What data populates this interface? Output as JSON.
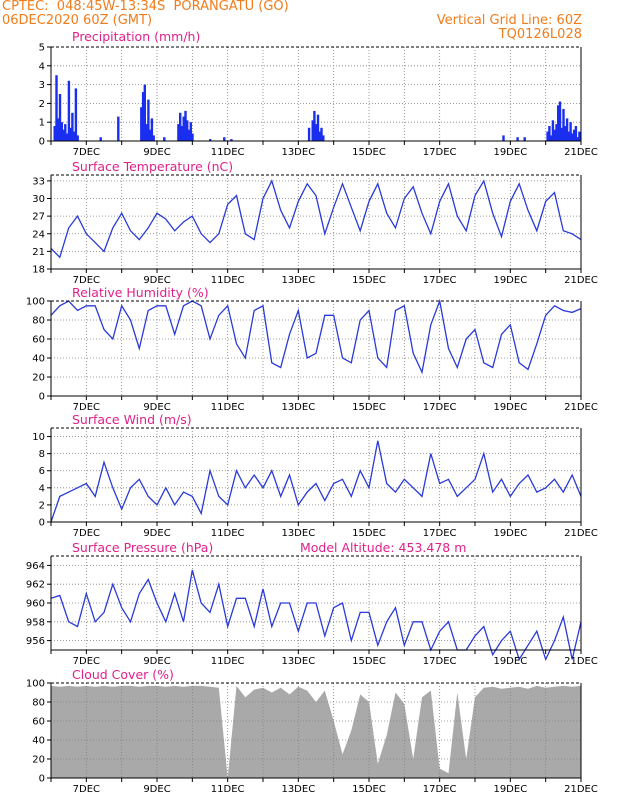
{
  "header": {
    "line1_left": "CPTEC:  048:45W-13:34S  PORANGATU (GO)",
    "line2_left": "06DEC2020 60Z (GMT)",
    "line1_right": "Vertical Grid Line: 60Z",
    "line2_right": "TQ0126L028"
  },
  "colors": {
    "header": "#f07c1c",
    "title": "#e0208a",
    "line": "#2a3ad8",
    "bar": "#1a2ef0",
    "cloud": "#a9a9a9",
    "grid": "#808080"
  },
  "x_axis": {
    "start_day": 6,
    "end_day": 21,
    "tick_labels": [
      "7DEC",
      "9DEC",
      "11DEC",
      "13DEC",
      "15DEC",
      "17DEC",
      "19DEC",
      "21DEC"
    ],
    "tick_days": [
      7,
      9,
      11,
      13,
      15,
      17,
      19,
      21
    ]
  },
  "model_altitude": "Model Altitude: 453.478 m",
  "chart_data": [
    {
      "type": "bar",
      "title": "Precipitation (mm/h)",
      "ylim": [
        0,
        5
      ],
      "yticks": [
        "0",
        "1",
        "2",
        "3",
        "4",
        "5"
      ],
      "x": [
        6.1,
        6.15,
        6.2,
        6.25,
        6.3,
        6.35,
        6.4,
        6.45,
        6.5,
        6.55,
        6.6,
        6.65,
        6.7,
        6.75,
        7.4,
        7.9,
        8.55,
        8.6,
        8.65,
        8.7,
        8.75,
        8.8,
        8.85,
        8.9,
        9.2,
        9.6,
        9.65,
        9.7,
        9.75,
        9.8,
        9.85,
        9.9,
        9.95,
        10.0,
        10.5,
        10.9,
        11.1,
        13.3,
        13.4,
        13.45,
        13.5,
        13.55,
        13.6,
        13.65,
        13.7,
        18.8,
        19.2,
        19.4,
        20.05,
        20.1,
        20.15,
        20.2,
        20.25,
        20.3,
        20.35,
        20.4,
        20.45,
        20.5,
        20.55,
        20.6,
        20.65,
        20.7,
        20.75,
        20.8,
        20.85,
        20.9,
        20.95
      ],
      "values": [
        0.8,
        3.5,
        1.2,
        2.5,
        1.0,
        0.6,
        0.9,
        0.4,
        3.2,
        0.7,
        1.5,
        0.5,
        2.8,
        0.3,
        0.2,
        1.3,
        1.8,
        2.6,
        3.0,
        0.9,
        2.2,
        0.6,
        1.2,
        0.3,
        0.2,
        0.9,
        1.5,
        0.8,
        1.3,
        1.6,
        1.1,
        0.6,
        1.0,
        0.4,
        0.1,
        0.2,
        0.1,
        0.7,
        1.1,
        1.6,
        0.9,
        1.4,
        0.5,
        0.7,
        0.3,
        0.3,
        0.2,
        0.2,
        0.5,
        0.8,
        0.3,
        1.1,
        0.6,
        0.9,
        1.9,
        2.1,
        0.7,
        1.7,
        0.8,
        1.2,
        0.5,
        1.0,
        0.4,
        0.6,
        0.8,
        0.2,
        0.5
      ]
    },
    {
      "type": "line",
      "title": "Surface Temperature (nC)",
      "ylim": [
        18,
        34
      ],
      "yticks": [
        "18",
        "21",
        "24",
        "27",
        "30",
        "33"
      ],
      "x": [
        6.0,
        6.25,
        6.5,
        6.75,
        7.0,
        7.25,
        7.5,
        7.75,
        8.0,
        8.25,
        8.5,
        8.75,
        9.0,
        9.25,
        9.5,
        9.75,
        10.0,
        10.25,
        10.5,
        10.75,
        11.0,
        11.25,
        11.5,
        11.75,
        12.0,
        12.25,
        12.5,
        12.75,
        13.0,
        13.25,
        13.5,
        13.75,
        14.0,
        14.25,
        14.5,
        14.75,
        15.0,
        15.25,
        15.5,
        15.75,
        16.0,
        16.25,
        16.5,
        16.75,
        17.0,
        17.25,
        17.5,
        17.75,
        18.0,
        18.25,
        18.5,
        18.75,
        19.0,
        19.25,
        19.5,
        19.75,
        20.0,
        20.25,
        20.5,
        20.75,
        21.0
      ],
      "values": [
        21.5,
        20.0,
        25.0,
        27.0,
        24.0,
        22.5,
        21.0,
        25.0,
        27.5,
        24.5,
        23.0,
        25.0,
        27.5,
        26.5,
        24.5,
        26.0,
        27.0,
        24.0,
        22.5,
        24.0,
        29.0,
        30.5,
        24.0,
        23.0,
        30.0,
        33.0,
        28.0,
        25.0,
        29.5,
        32.5,
        30.5,
        24.0,
        28.5,
        32.5,
        28.5,
        24.5,
        29.5,
        32.5,
        27.5,
        25.0,
        30.0,
        32.0,
        27.5,
        24.0,
        29.5,
        32.5,
        27.0,
        24.5,
        30.5,
        33.0,
        27.5,
        23.5,
        29.5,
        32.5,
        28.0,
        24.5,
        29.5,
        31.0,
        24.5,
        24.0,
        23.0
      ]
    },
    {
      "type": "line",
      "title": "Relative Humidity (%)",
      "ylim": [
        0,
        100
      ],
      "yticks": [
        "0",
        "20",
        "40",
        "60",
        "80",
        "100"
      ],
      "x": [
        6.0,
        6.25,
        6.5,
        6.75,
        7.0,
        7.25,
        7.5,
        7.75,
        8.0,
        8.25,
        8.5,
        8.75,
        9.0,
        9.25,
        9.5,
        9.75,
        10.0,
        10.25,
        10.5,
        10.75,
        11.0,
        11.25,
        11.5,
        11.75,
        12.0,
        12.25,
        12.5,
        12.75,
        13.0,
        13.25,
        13.5,
        13.75,
        14.0,
        14.25,
        14.5,
        14.75,
        15.0,
        15.25,
        15.5,
        15.75,
        16.0,
        16.25,
        16.5,
        16.75,
        17.0,
        17.25,
        17.5,
        17.75,
        18.0,
        18.25,
        18.5,
        18.75,
        19.0,
        19.25,
        19.5,
        19.75,
        20.0,
        20.25,
        20.5,
        20.75,
        21.0
      ],
      "values": [
        85,
        95,
        100,
        90,
        95,
        95,
        70,
        60,
        95,
        80,
        50,
        90,
        95,
        95,
        65,
        95,
        100,
        95,
        60,
        85,
        95,
        55,
        40,
        90,
        95,
        35,
        30,
        65,
        90,
        40,
        45,
        85,
        85,
        40,
        35,
        80,
        90,
        40,
        30,
        90,
        95,
        45,
        25,
        75,
        100,
        50,
        30,
        60,
        70,
        35,
        30,
        65,
        75,
        35,
        28,
        55,
        85,
        95,
        90,
        88,
        92
      ]
    },
    {
      "type": "line",
      "title": "Surface Wind (m/s)",
      "ylim": [
        0,
        11
      ],
      "yticks": [
        "0",
        "2",
        "4",
        "6",
        "8",
        "10"
      ],
      "x": [
        6.0,
        6.25,
        6.5,
        6.75,
        7.0,
        7.25,
        7.5,
        7.75,
        8.0,
        8.25,
        8.5,
        8.75,
        9.0,
        9.25,
        9.5,
        9.75,
        10.0,
        10.25,
        10.5,
        10.75,
        11.0,
        11.25,
        11.5,
        11.75,
        12.0,
        12.25,
        12.5,
        12.75,
        13.0,
        13.25,
        13.5,
        13.75,
        14.0,
        14.25,
        14.5,
        14.75,
        15.0,
        15.25,
        15.5,
        15.75,
        16.0,
        16.25,
        16.5,
        16.75,
        17.0,
        17.25,
        17.5,
        17.75,
        18.0,
        18.25,
        18.5,
        18.75,
        19.0,
        19.25,
        19.5,
        19.75,
        20.0,
        20.25,
        20.5,
        20.75,
        21.0
      ],
      "values": [
        0,
        3,
        3.5,
        4,
        4.5,
        3,
        7,
        4,
        1.5,
        4,
        5,
        3,
        2,
        4,
        2,
        3.5,
        3,
        1,
        6,
        3,
        2,
        6,
        4,
        5.5,
        4,
        6,
        3,
        5.5,
        2,
        3.5,
        4.5,
        2.5,
        4.5,
        5,
        3,
        6,
        4,
        9.5,
        4.5,
        3.5,
        5,
        4,
        3,
        8,
        4.5,
        5,
        3,
        4,
        5,
        8,
        3.5,
        5,
        3,
        4.5,
        5.5,
        3.5,
        4,
        5,
        3.5,
        5.5,
        3
      ]
    },
    {
      "type": "line",
      "title": "Surface Pressure (hPa)",
      "ylim": [
        955,
        965
      ],
      "yticks": [
        "956",
        "958",
        "960",
        "962",
        "964"
      ],
      "x": [
        6.0,
        6.25,
        6.5,
        6.75,
        7.0,
        7.25,
        7.5,
        7.75,
        8.0,
        8.25,
        8.5,
        8.75,
        9.0,
        9.25,
        9.5,
        9.75,
        10.0,
        10.25,
        10.5,
        10.75,
        11.0,
        11.25,
        11.5,
        11.75,
        12.0,
        12.25,
        12.5,
        12.75,
        13.0,
        13.25,
        13.5,
        13.75,
        14.0,
        14.25,
        14.5,
        14.75,
        15.0,
        15.25,
        15.5,
        15.75,
        16.0,
        16.25,
        16.5,
        16.75,
        17.0,
        17.25,
        17.5,
        17.75,
        18.0,
        18.25,
        18.5,
        18.75,
        19.0,
        19.25,
        19.5,
        19.75,
        20.0,
        20.25,
        20.5,
        20.75,
        21.0
      ],
      "values": [
        960.5,
        960.8,
        958,
        957.5,
        961,
        958,
        959,
        962,
        959.5,
        958,
        961,
        962.5,
        960,
        958,
        961,
        958,
        963.5,
        960,
        959,
        962,
        957.5,
        960.5,
        960.5,
        957.5,
        961.5,
        957.5,
        960,
        960,
        957,
        960,
        960,
        956.5,
        959.5,
        960,
        956,
        959,
        959,
        955.5,
        958,
        959.5,
        955.5,
        958,
        958,
        955,
        957,
        958,
        955,
        955,
        956.5,
        957.5,
        954.5,
        956,
        957,
        954,
        955.5,
        957,
        954,
        956,
        958.5,
        954,
        958
      ]
    },
    {
      "type": "area",
      "title": "Cloud Cover (%)",
      "ylim": [
        0,
        100
      ],
      "yticks": [
        "0",
        "20",
        "40",
        "60",
        "80",
        "100"
      ],
      "x": [
        6.0,
        6.25,
        6.5,
        6.75,
        7.0,
        7.25,
        7.5,
        7.75,
        8.0,
        8.25,
        8.5,
        8.75,
        9.0,
        9.25,
        9.5,
        9.75,
        10.0,
        10.25,
        10.5,
        10.75,
        11.0,
        11.25,
        11.5,
        11.75,
        12.0,
        12.25,
        12.5,
        12.75,
        13.0,
        13.25,
        13.5,
        13.75,
        14.0,
        14.25,
        14.5,
        14.75,
        15.0,
        15.25,
        15.5,
        15.75,
        16.0,
        16.25,
        16.5,
        16.75,
        17.0,
        17.25,
        17.5,
        17.75,
        18.0,
        18.25,
        18.5,
        18.75,
        19.0,
        19.25,
        19.5,
        19.75,
        20.0,
        20.25,
        20.5,
        20.75,
        21.0
      ],
      "values": [
        97,
        96,
        97,
        96,
        97,
        96,
        97,
        96,
        97,
        97,
        96,
        97,
        97,
        96,
        97,
        96,
        97,
        97,
        96,
        95,
        0,
        97,
        85,
        93,
        95,
        90,
        95,
        88,
        96,
        92,
        80,
        92,
        60,
        25,
        50,
        88,
        80,
        15,
        45,
        90,
        78,
        20,
        85,
        92,
        10,
        5,
        90,
        20,
        85,
        95,
        96,
        94,
        95,
        96,
        94,
        97,
        95,
        96,
        97,
        96,
        97
      ]
    }
  ]
}
